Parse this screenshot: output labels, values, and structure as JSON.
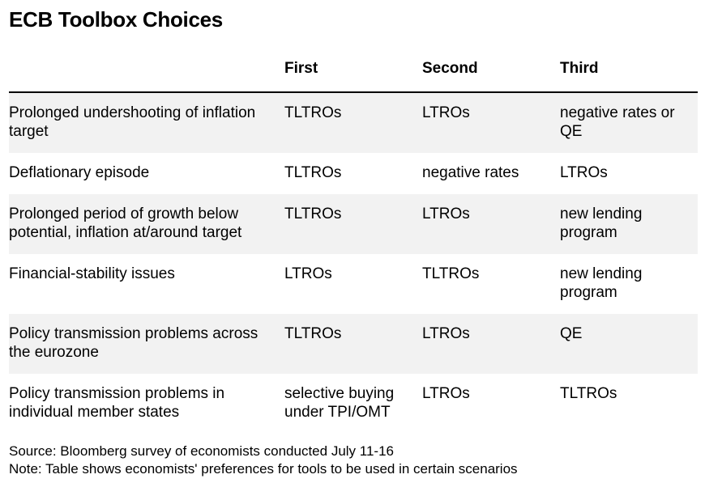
{
  "title": "ECB Toolbox Choices",
  "table": {
    "headers": [
      "",
      "First",
      "Second",
      "Third"
    ],
    "rows": [
      [
        "Prolonged undershooting of inflation target",
        "TLTROs",
        "LTROs",
        "negative rates or QE"
      ],
      [
        "Deflationary episode",
        "TLTROs",
        "negative rates",
        "LTROs"
      ],
      [
        "Prolonged period of growth below potential, inflation at/around target",
        "TLTROs",
        "LTROs",
        "new lending program"
      ],
      [
        "Financial-stability issues",
        "LTROs",
        "TLTROs",
        "new lending program"
      ],
      [
        "Policy transmission problems across the eurozone",
        "TLTROs",
        "LTROs",
        "QE"
      ],
      [
        "Policy transmission problems in individual member states",
        "selective buying under TPI/OMT",
        "LTROs",
        "TLTROs"
      ]
    ]
  },
  "footer": {
    "source": "Source: Bloomberg survey of economists conducted July 11-16",
    "note": "Note: Table shows economists' preferences for tools to be used in certain scenarios"
  }
}
